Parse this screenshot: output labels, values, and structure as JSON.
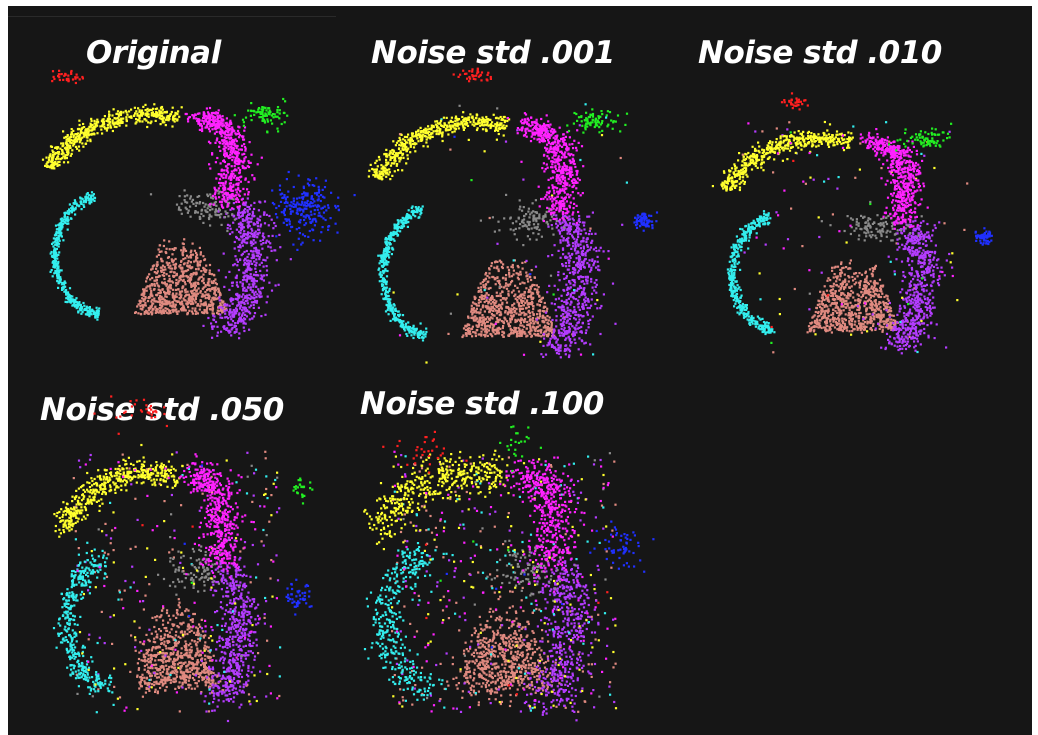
{
  "chart_data": [
    {
      "type": "scatter",
      "title": "Original",
      "noise_std": 0
    },
    {
      "type": "scatter",
      "title": "Noise std .001",
      "noise_std": 0.001
    },
    {
      "type": "scatter",
      "title": "Noise std .010",
      "noise_std": 0.01
    },
    {
      "type": "scatter",
      "title": "Noise std .050",
      "noise_std": 0.05
    },
    {
      "type": "scatter",
      "title": "Noise std .100",
      "noise_std": 0.1
    }
  ],
  "cluster_colors": {
    "red": "#ff2020",
    "yellow": "#ffff2e",
    "magenta": "#ff22ff",
    "green": "#22ee22",
    "blue": "#2030ff",
    "purple": "#b43cff",
    "gray": "#8a8a8a",
    "cyan": "#33eeee",
    "salmon": "#e08a80"
  }
}
